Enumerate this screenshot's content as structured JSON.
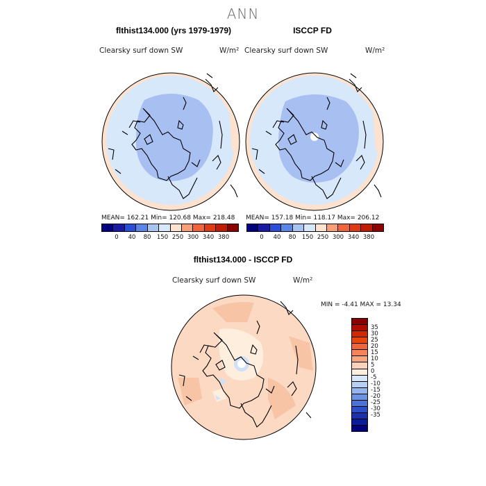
{
  "title": "ANN",
  "panels": {
    "model": {
      "title": "flthist134.000 (yrs 1979-1979)",
      "var_label": "Clearsky surf down SW",
      "units": "W/m²",
      "stats": "MEAN=  162.21   Min=  120.68   Max=  218.48"
    },
    "obs": {
      "title": "ISCCP FD",
      "var_label": "Clearsky surf down SW",
      "units": "W/m²",
      "stats": "MEAN=  157.18   Min=  118.17   Max=  206.12"
    },
    "diff": {
      "title": "flthist134.000 - ISCCP FD",
      "var_label": "Clearsky surf down SW",
      "units": "W/m²",
      "stats": "MIN =   -4.41  MAX =   13.34"
    }
  },
  "colorbar_top": {
    "colors": [
      "#000080",
      "#1a1aa6",
      "#2a4fd6",
      "#5b86e6",
      "#a8c4f0",
      "#d8e8fb",
      "#fde3cf",
      "#f6a07a",
      "#f0643c",
      "#e03a12",
      "#c01a00",
      "#8c0000"
    ],
    "tick_labels": [
      "0",
      "40",
      "80",
      "150",
      "250",
      "300",
      "340",
      "380"
    ]
  },
  "colorbar_diff": {
    "colors": [
      "#8c0000",
      "#b00c00",
      "#d22800",
      "#e8460a",
      "#f0643c",
      "#f5845a",
      "#f7a57e",
      "#fbd3bd",
      "#fdeede",
      "#d8e8fb",
      "#b8d0f4",
      "#94b4ec",
      "#6c92e2",
      "#4a72d8",
      "#2d50c8",
      "#1a30ae",
      "#0c1c96",
      "#000080"
    ],
    "tick_labels": [
      "35",
      "30",
      "25",
      "20",
      "15",
      "10",
      "5",
      "0",
      "-5",
      "-10",
      "-15",
      "-20",
      "-25",
      "-30",
      "-35"
    ]
  },
  "map_colors": {
    "outer_ring": "#fde3cf",
    "mid_fill": "#d8e8fb",
    "inner_fill": "#a8bff2",
    "diff_fill": "#fbd9c2",
    "diff_dark": "#f7c4a6",
    "diff_light": "#fdeede",
    "diff_blue": "#cfe0f8",
    "missing": "#ffffff"
  }
}
